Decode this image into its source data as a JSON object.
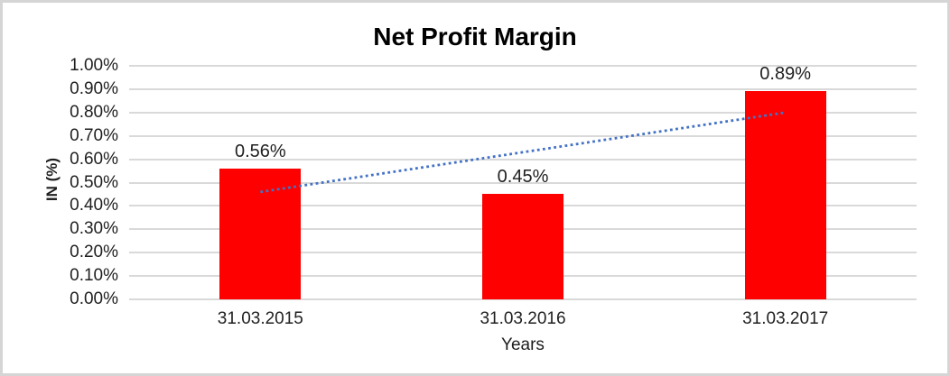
{
  "chart_data": {
    "type": "bar",
    "title": "Net Profit Margin",
    "xlabel": "Years",
    "ylabel": "IN (%)",
    "categories": [
      "31.03.2015",
      "31.03.2016",
      "31.03.2017"
    ],
    "values": [
      0.56,
      0.45,
      0.89
    ],
    "data_labels": [
      "0.56%",
      "0.45%",
      "0.89%"
    ],
    "ylim": [
      0,
      1.0
    ],
    "ytick_labels": [
      "0.00%",
      "0.10%",
      "0.20%",
      "0.30%",
      "0.40%",
      "0.50%",
      "0.60%",
      "0.70%",
      "0.80%",
      "0.90%",
      "1.00%"
    ],
    "grid": true,
    "legend": "none",
    "bar_color": "#FF0000",
    "gridline_color": "#D9D9D9",
    "text_color": "#1F1F1F",
    "border_color": "#D5D5D5",
    "trendline": {
      "type": "linear",
      "style": "dotted",
      "color": "#4472C4",
      "start_value": 0.46,
      "end_value": 0.8
    }
  }
}
